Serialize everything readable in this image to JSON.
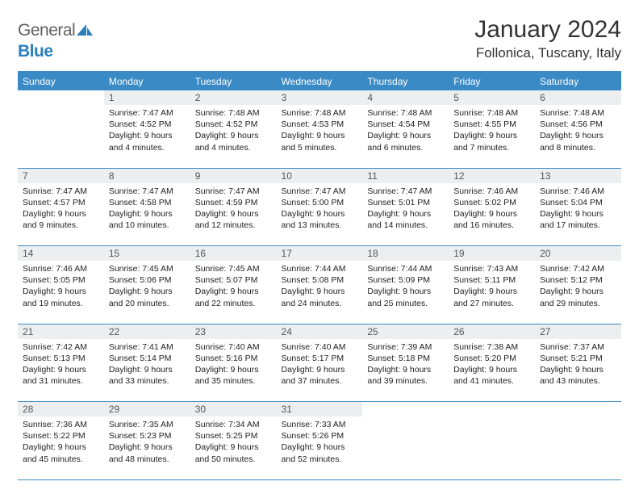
{
  "logo": {
    "part1": "General",
    "part2": "Blue"
  },
  "title": "January 2024",
  "location": "Follonica, Tuscany, Italy",
  "colors": {
    "header_bg": "#3a8ac5",
    "header_text": "#ffffff",
    "daynum_bg": "#eceef0",
    "border": "#3a8ac5",
    "text": "#222222",
    "logo_gray": "#606060",
    "logo_blue": "#2a7fba"
  },
  "weekdays": [
    "Sunday",
    "Monday",
    "Tuesday",
    "Wednesday",
    "Thursday",
    "Friday",
    "Saturday"
  ],
  "weeks": [
    [
      {
        "n": "",
        "lines": []
      },
      {
        "n": "1",
        "lines": [
          "Sunrise: 7:47 AM",
          "Sunset: 4:52 PM",
          "Daylight: 9 hours",
          "and 4 minutes."
        ]
      },
      {
        "n": "2",
        "lines": [
          "Sunrise: 7:48 AM",
          "Sunset: 4:52 PM",
          "Daylight: 9 hours",
          "and 4 minutes."
        ]
      },
      {
        "n": "3",
        "lines": [
          "Sunrise: 7:48 AM",
          "Sunset: 4:53 PM",
          "Daylight: 9 hours",
          "and 5 minutes."
        ]
      },
      {
        "n": "4",
        "lines": [
          "Sunrise: 7:48 AM",
          "Sunset: 4:54 PM",
          "Daylight: 9 hours",
          "and 6 minutes."
        ]
      },
      {
        "n": "5",
        "lines": [
          "Sunrise: 7:48 AM",
          "Sunset: 4:55 PM",
          "Daylight: 9 hours",
          "and 7 minutes."
        ]
      },
      {
        "n": "6",
        "lines": [
          "Sunrise: 7:48 AM",
          "Sunset: 4:56 PM",
          "Daylight: 9 hours",
          "and 8 minutes."
        ]
      }
    ],
    [
      {
        "n": "7",
        "lines": [
          "Sunrise: 7:47 AM",
          "Sunset: 4:57 PM",
          "Daylight: 9 hours",
          "and 9 minutes."
        ]
      },
      {
        "n": "8",
        "lines": [
          "Sunrise: 7:47 AM",
          "Sunset: 4:58 PM",
          "Daylight: 9 hours",
          "and 10 minutes."
        ]
      },
      {
        "n": "9",
        "lines": [
          "Sunrise: 7:47 AM",
          "Sunset: 4:59 PM",
          "Daylight: 9 hours",
          "and 12 minutes."
        ]
      },
      {
        "n": "10",
        "lines": [
          "Sunrise: 7:47 AM",
          "Sunset: 5:00 PM",
          "Daylight: 9 hours",
          "and 13 minutes."
        ]
      },
      {
        "n": "11",
        "lines": [
          "Sunrise: 7:47 AM",
          "Sunset: 5:01 PM",
          "Daylight: 9 hours",
          "and 14 minutes."
        ]
      },
      {
        "n": "12",
        "lines": [
          "Sunrise: 7:46 AM",
          "Sunset: 5:02 PM",
          "Daylight: 9 hours",
          "and 16 minutes."
        ]
      },
      {
        "n": "13",
        "lines": [
          "Sunrise: 7:46 AM",
          "Sunset: 5:04 PM",
          "Daylight: 9 hours",
          "and 17 minutes."
        ]
      }
    ],
    [
      {
        "n": "14",
        "lines": [
          "Sunrise: 7:46 AM",
          "Sunset: 5:05 PM",
          "Daylight: 9 hours",
          "and 19 minutes."
        ]
      },
      {
        "n": "15",
        "lines": [
          "Sunrise: 7:45 AM",
          "Sunset: 5:06 PM",
          "Daylight: 9 hours",
          "and 20 minutes."
        ]
      },
      {
        "n": "16",
        "lines": [
          "Sunrise: 7:45 AM",
          "Sunset: 5:07 PM",
          "Daylight: 9 hours",
          "and 22 minutes."
        ]
      },
      {
        "n": "17",
        "lines": [
          "Sunrise: 7:44 AM",
          "Sunset: 5:08 PM",
          "Daylight: 9 hours",
          "and 24 minutes."
        ]
      },
      {
        "n": "18",
        "lines": [
          "Sunrise: 7:44 AM",
          "Sunset: 5:09 PM",
          "Daylight: 9 hours",
          "and 25 minutes."
        ]
      },
      {
        "n": "19",
        "lines": [
          "Sunrise: 7:43 AM",
          "Sunset: 5:11 PM",
          "Daylight: 9 hours",
          "and 27 minutes."
        ]
      },
      {
        "n": "20",
        "lines": [
          "Sunrise: 7:42 AM",
          "Sunset: 5:12 PM",
          "Daylight: 9 hours",
          "and 29 minutes."
        ]
      }
    ],
    [
      {
        "n": "21",
        "lines": [
          "Sunrise: 7:42 AM",
          "Sunset: 5:13 PM",
          "Daylight: 9 hours",
          "and 31 minutes."
        ]
      },
      {
        "n": "22",
        "lines": [
          "Sunrise: 7:41 AM",
          "Sunset: 5:14 PM",
          "Daylight: 9 hours",
          "and 33 minutes."
        ]
      },
      {
        "n": "23",
        "lines": [
          "Sunrise: 7:40 AM",
          "Sunset: 5:16 PM",
          "Daylight: 9 hours",
          "and 35 minutes."
        ]
      },
      {
        "n": "24",
        "lines": [
          "Sunrise: 7:40 AM",
          "Sunset: 5:17 PM",
          "Daylight: 9 hours",
          "and 37 minutes."
        ]
      },
      {
        "n": "25",
        "lines": [
          "Sunrise: 7:39 AM",
          "Sunset: 5:18 PM",
          "Daylight: 9 hours",
          "and 39 minutes."
        ]
      },
      {
        "n": "26",
        "lines": [
          "Sunrise: 7:38 AM",
          "Sunset: 5:20 PM",
          "Daylight: 9 hours",
          "and 41 minutes."
        ]
      },
      {
        "n": "27",
        "lines": [
          "Sunrise: 7:37 AM",
          "Sunset: 5:21 PM",
          "Daylight: 9 hours",
          "and 43 minutes."
        ]
      }
    ],
    [
      {
        "n": "28",
        "lines": [
          "Sunrise: 7:36 AM",
          "Sunset: 5:22 PM",
          "Daylight: 9 hours",
          "and 45 minutes."
        ]
      },
      {
        "n": "29",
        "lines": [
          "Sunrise: 7:35 AM",
          "Sunset: 5:23 PM",
          "Daylight: 9 hours",
          "and 48 minutes."
        ]
      },
      {
        "n": "30",
        "lines": [
          "Sunrise: 7:34 AM",
          "Sunset: 5:25 PM",
          "Daylight: 9 hours",
          "and 50 minutes."
        ]
      },
      {
        "n": "31",
        "lines": [
          "Sunrise: 7:33 AM",
          "Sunset: 5:26 PM",
          "Daylight: 9 hours",
          "and 52 minutes."
        ]
      },
      {
        "n": "",
        "lines": []
      },
      {
        "n": "",
        "lines": []
      },
      {
        "n": "",
        "lines": []
      }
    ]
  ]
}
